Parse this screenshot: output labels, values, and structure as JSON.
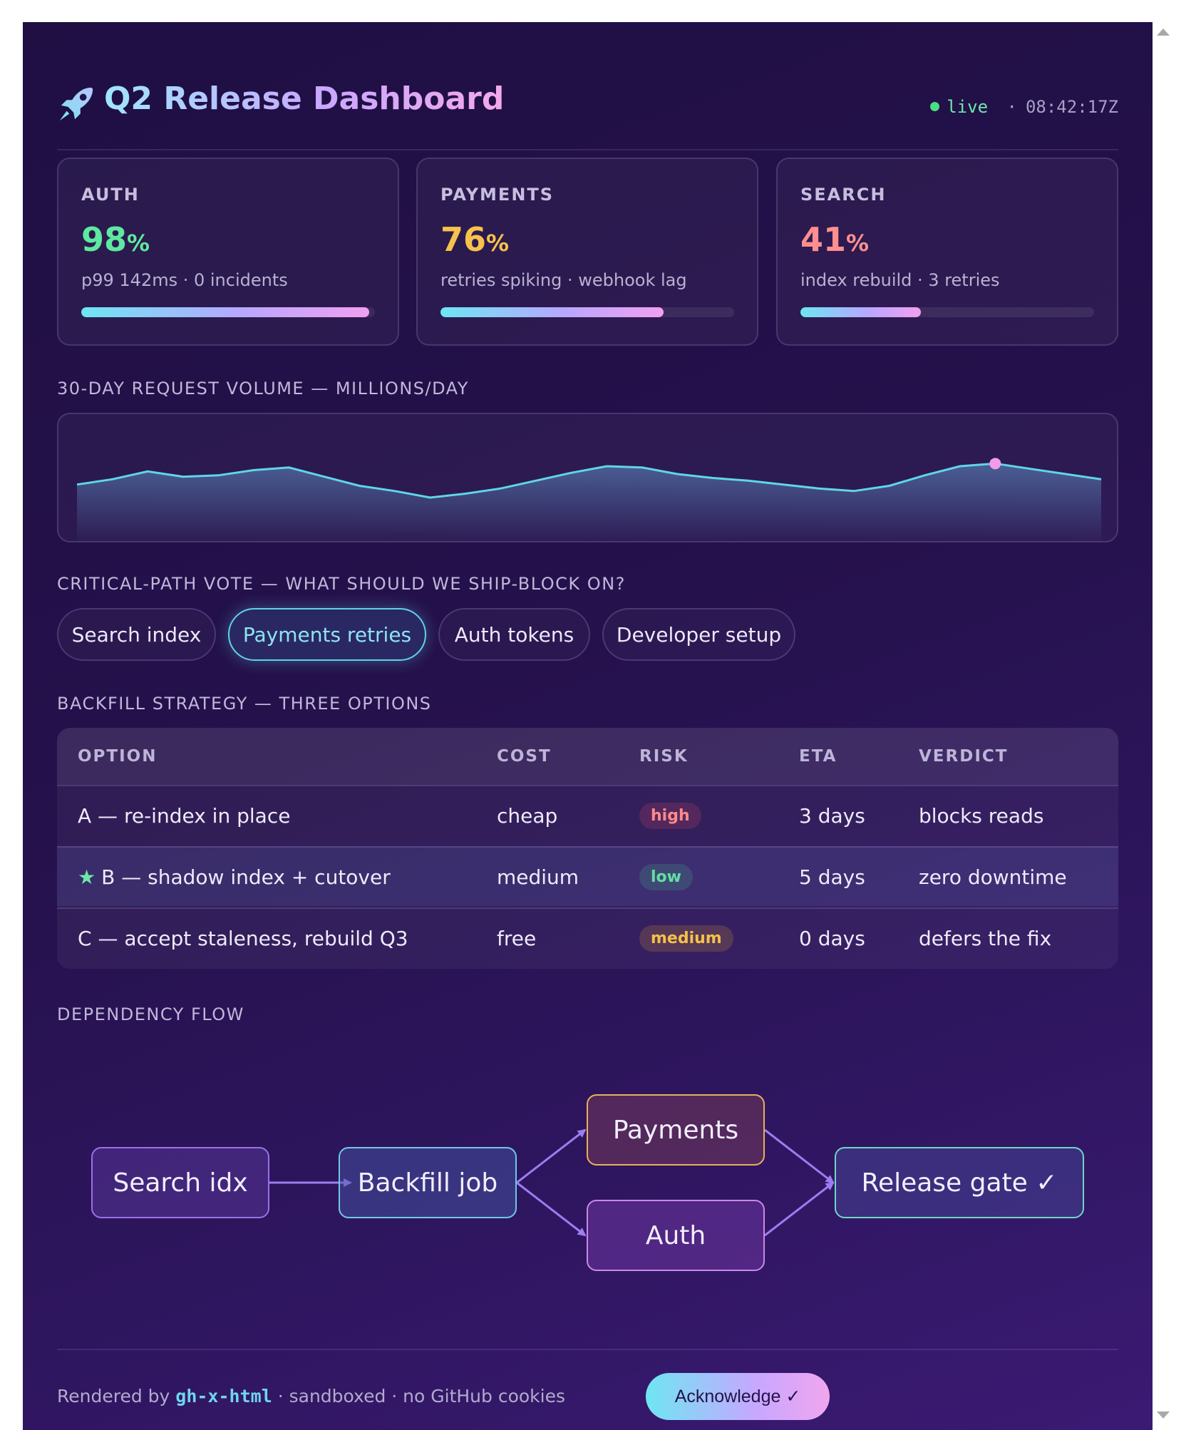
{
  "header": {
    "title": "Q2 Release Dashboard",
    "status_live": "live",
    "status_sep": "·",
    "status_time": "08:42:17Z",
    "icon": "rocket-icon"
  },
  "cards": [
    {
      "label": "AUTH",
      "value": "98",
      "unit": "%",
      "sub": "p99 142ms · 0 incidents",
      "progress": 0.98,
      "color": "#5ee8a0"
    },
    {
      "label": "PAYMENTS",
      "value": "76",
      "unit": "%",
      "sub": "retries spiking · webhook lag",
      "progress": 0.76,
      "color": "#f7c24b"
    },
    {
      "label": "SEARCH",
      "value": "41",
      "unit": "%",
      "sub": "index rebuild · 3 retries",
      "progress": 0.41,
      "color": "#ff8f8f"
    }
  ],
  "volume": {
    "label": "30-DAY REQUEST VOLUME — MILLIONS/DAY",
    "series": [
      58,
      62,
      68,
      64,
      65,
      69,
      71,
      64,
      57,
      53,
      48,
      51,
      55,
      61,
      67,
      72,
      71,
      66,
      63,
      61,
      58,
      55,
      53,
      57,
      65,
      72,
      74,
      70,
      66,
      62
    ],
    "highlight_index": 26,
    "line_color": "#5fd6e6",
    "highlight_color": "#f29bea"
  },
  "vote": {
    "label": "CRITICAL-PATH VOTE — WHAT SHOULD WE SHIP-BLOCK ON?",
    "options": [
      "Search index",
      "Payments retries",
      "Auth tokens",
      "Developer setup"
    ],
    "selected": "Payments retries"
  },
  "backfill": {
    "label": "BACKFILL STRATEGY — THREE OPTIONS",
    "columns": [
      "OPTION",
      "COST",
      "RISK",
      "ETA",
      "VERDICT"
    ],
    "rows": [
      {
        "option": "A — re-index in place",
        "star": "",
        "cost": "cheap",
        "risk": "high",
        "eta": "3 days",
        "verdict": "blocks reads"
      },
      {
        "option": "B — shadow index + cutover",
        "star": "★",
        "cost": "medium",
        "risk": "low",
        "eta": "5 days",
        "verdict": "zero downtime"
      },
      {
        "option": "C — accept staleness, rebuild Q3",
        "star": "",
        "cost": "free",
        "risk": "medium",
        "eta": "0 days",
        "verdict": "defers the fix"
      }
    ]
  },
  "flow": {
    "label": "DEPENDENCY FLOW",
    "nodes": {
      "search": "Search idx",
      "backfill": "Backfill job",
      "payments": "Payments",
      "auth": "Auth",
      "gate": "Release gate ✓"
    },
    "colors": {
      "search": "#9a72e6",
      "backfill": "#6fc9e6",
      "payments": "#e7b259",
      "auth": "#c98ae6",
      "gate": "#6fd6c4",
      "arrow": "#9d7cf0"
    }
  },
  "footer": {
    "prefix": "Rendered by",
    "code": "gh-x-html",
    "suffix": "· sandboxed · no GitHub cookies",
    "button": "Acknowledge ✓"
  }
}
